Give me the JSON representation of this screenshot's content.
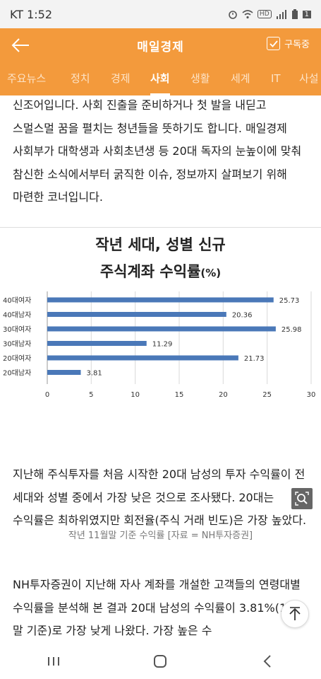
{
  "status_bar": {
    "carrier_time": "KT 1:52",
    "hd_label": "HD",
    "battery_level": "1"
  },
  "app_bar": {
    "title": "매일경제",
    "subscribe_label": "구독중"
  },
  "tabs": [
    {
      "label": "주요뉴스"
    },
    {
      "label": "정치"
    },
    {
      "label": "경제"
    },
    {
      "label": "사회",
      "active": true
    },
    {
      "label": "생활"
    },
    {
      "label": "세계"
    },
    {
      "label": "IT"
    },
    {
      "label": "사설"
    }
  ],
  "article": {
    "paragraph1": "신조어입니다. 사회 진출을 준비하거나 첫 발을 내딛고 스멀스멀 꿈을 펼치는 청년들을 뜻하기도 합니다. 매일경제 사회부가 대학생과 사회초년생 등 20대 독자의 눈높이에 맞춰 참신한 소식에서부터 굵직한 이슈, 정보까지 살펴보기 위해 마련한 코너입니다.",
    "caption": "작년 11월말 기준 수익률 [자료 = NH투자증권]",
    "paragraph2": "지난해 주식투자를 처음 시작한 20대 남성의 투자 수익률이 전 세대와 성별 중에서 가장 낮은 것으로 조사됐다. 20대는 수익률은 최하위였지만 회전율(주식 거래 빈도)은 가장 높았다.",
    "paragraph3": "NH투자증권이 지난해 자사 계좌를 개설한 고객들의 연령대별 수익률을 분석해 본 결과 20대 남성의 수익률이 3.81%(11월 말 기준)로 가장 낮게 나왔다. 가장 높은 수"
  },
  "chart_data": {
    "type": "bar",
    "orientation": "horizontal",
    "title": "작년 세대, 성별 신규",
    "subtitle": "주식계좌 수익률",
    "unit": "(%)",
    "categories": [
      "40대여자",
      "40대남자",
      "30대여자",
      "30대남자",
      "20대여자",
      "20대남자"
    ],
    "values": [
      25.73,
      20.36,
      25.98,
      11.29,
      21.73,
      3.81
    ],
    "xlim": [
      0,
      30
    ],
    "xticks": [
      "0",
      "5",
      "10",
      "15",
      "20",
      "25",
      "30"
    ],
    "bar_color": "#4a78b8",
    "grid": true
  },
  "colors": {
    "accent": "#f39a3c"
  },
  "icons": {
    "back": "arrow-left-icon",
    "subscribe": "checkbox-icon",
    "zoom": "zoom-icon",
    "top": "arrow-up-icon"
  }
}
